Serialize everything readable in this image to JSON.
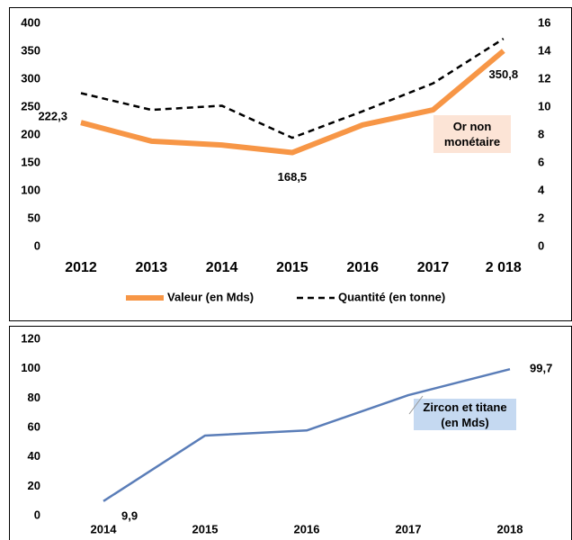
{
  "chart_data": [
    {
      "type": "line",
      "categories": [
        "2012",
        "2013",
        "2014",
        "2015",
        "2016",
        "2017",
        "2 018"
      ],
      "series": [
        {
          "name": "Valeur (en Mds)",
          "color": "#f79646",
          "values": [
            222.3,
            189,
            182,
            168.5,
            218,
            245,
            350.8
          ],
          "value_labels": [
            "222,3",
            null,
            null,
            "168,5",
            null,
            null,
            "350,8"
          ]
        },
        {
          "name": "Quantité (en tonne)",
          "color": "#000000",
          "axis": "y2",
          "dashed": true,
          "values": [
            11.0,
            9.8,
            10.1,
            7.8,
            9.7,
            11.7,
            14.9
          ]
        }
      ],
      "ylim": [
        0,
        400
      ],
      "yticks": [
        0,
        50,
        100,
        150,
        200,
        250,
        300,
        350,
        400
      ],
      "y2lim": [
        0,
        16
      ],
      "y2ticks": [
        0,
        2,
        4,
        6,
        8,
        10,
        12,
        14,
        16
      ],
      "annotation": "Or non monétaire",
      "legend": "bottom"
    },
    {
      "type": "line",
      "categories": [
        "2014",
        "2015",
        "2016",
        "2017",
        "2018"
      ],
      "series": [
        {
          "color": "#5a7db8",
          "values": [
            9.9,
            54.5,
            58,
            82,
            99.7
          ],
          "value_labels": [
            "9,9",
            null,
            null,
            null,
            "99,7"
          ]
        }
      ],
      "ylim": [
        0,
        120
      ],
      "yticks": [
        0,
        20,
        40,
        60,
        80,
        100,
        120
      ],
      "annotation": "Zircon et titane (en Mds)"
    }
  ]
}
